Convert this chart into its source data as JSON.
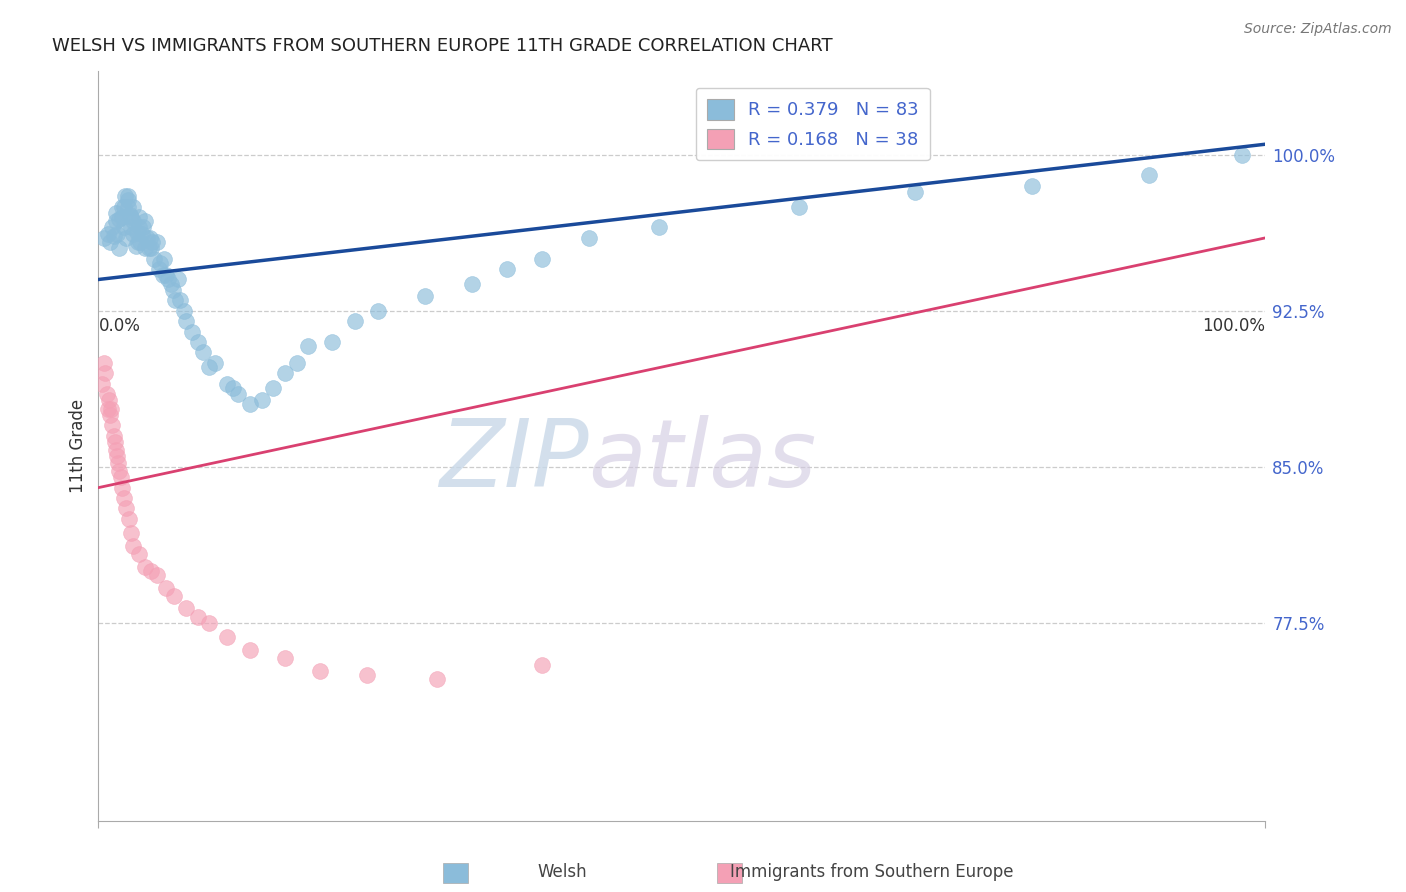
{
  "title": "WELSH VS IMMIGRANTS FROM SOUTHERN EUROPE 11TH GRADE CORRELATION CHART",
  "source": "Source: ZipAtlas.com",
  "ylabel": "11th Grade",
  "R_welsh": 0.379,
  "N_welsh": 83,
  "R_immig": 0.168,
  "N_immig": 38,
  "yticks": [
    0.775,
    0.85,
    0.925,
    1.0
  ],
  "ytick_labels": [
    "77.5%",
    "85.0%",
    "92.5%",
    "100.0%"
  ],
  "xlim": [
    0.0,
    1.0
  ],
  "ylim": [
    0.68,
    1.04
  ],
  "color_welsh": "#8BBCDA",
  "color_immig": "#F4A0B5",
  "color_line_welsh": "#1A4A9A",
  "color_line_immig": "#D94070",
  "color_ticks": "#4466CC",
  "background": "#FFFFFF",
  "welsh_size": 130,
  "immig_size": 130,
  "title_fontsize": 13,
  "label_fontsize": 12,
  "tick_fontsize": 12,
  "watermark_zip": "ZIP",
  "watermark_atlas": "atlas",
  "welsh_x": [
    0.005,
    0.008,
    0.01,
    0.012,
    0.013,
    0.015,
    0.015,
    0.016,
    0.018,
    0.018,
    0.02,
    0.02,
    0.022,
    0.022,
    0.023,
    0.024,
    0.025,
    0.025,
    0.025,
    0.027,
    0.028,
    0.028,
    0.03,
    0.03,
    0.03,
    0.032,
    0.033,
    0.034,
    0.035,
    0.035,
    0.036,
    0.037,
    0.038,
    0.04,
    0.04,
    0.042,
    0.043,
    0.044,
    0.045,
    0.046,
    0.048,
    0.05,
    0.052,
    0.053,
    0.055,
    0.056,
    0.058,
    0.06,
    0.062,
    0.064,
    0.066,
    0.068,
    0.07,
    0.073,
    0.075,
    0.08,
    0.085,
    0.09,
    0.095,
    0.1,
    0.11,
    0.115,
    0.12,
    0.13,
    0.14,
    0.15,
    0.16,
    0.17,
    0.18,
    0.2,
    0.22,
    0.24,
    0.28,
    0.32,
    0.35,
    0.38,
    0.42,
    0.48,
    0.6,
    0.7,
    0.8,
    0.9,
    0.98
  ],
  "welsh_y": [
    0.96,
    0.962,
    0.958,
    0.965,
    0.961,
    0.968,
    0.972,
    0.962,
    0.955,
    0.969,
    0.97,
    0.975,
    0.965,
    0.975,
    0.98,
    0.96,
    0.975,
    0.978,
    0.98,
    0.971,
    0.965,
    0.97,
    0.962,
    0.968,
    0.975,
    0.956,
    0.963,
    0.958,
    0.965,
    0.97,
    0.958,
    0.962,
    0.965,
    0.955,
    0.968,
    0.96,
    0.955,
    0.96,
    0.955,
    0.958,
    0.95,
    0.958,
    0.945,
    0.948,
    0.942,
    0.95,
    0.942,
    0.94,
    0.938,
    0.935,
    0.93,
    0.94,
    0.93,
    0.925,
    0.92,
    0.915,
    0.91,
    0.905,
    0.898,
    0.9,
    0.89,
    0.888,
    0.885,
    0.88,
    0.882,
    0.888,
    0.895,
    0.9,
    0.908,
    0.91,
    0.92,
    0.925,
    0.932,
    0.938,
    0.945,
    0.95,
    0.96,
    0.965,
    0.975,
    0.982,
    0.985,
    0.99,
    1.0
  ],
  "immig_x": [
    0.003,
    0.005,
    0.006,
    0.007,
    0.008,
    0.009,
    0.01,
    0.011,
    0.012,
    0.013,
    0.014,
    0.015,
    0.016,
    0.017,
    0.018,
    0.019,
    0.02,
    0.022,
    0.024,
    0.026,
    0.028,
    0.03,
    0.035,
    0.04,
    0.045,
    0.05,
    0.058,
    0.065,
    0.075,
    0.085,
    0.095,
    0.11,
    0.13,
    0.16,
    0.19,
    0.23,
    0.29,
    0.38
  ],
  "immig_y": [
    0.89,
    0.9,
    0.895,
    0.885,
    0.878,
    0.882,
    0.875,
    0.878,
    0.87,
    0.865,
    0.862,
    0.858,
    0.855,
    0.852,
    0.848,
    0.845,
    0.84,
    0.835,
    0.83,
    0.825,
    0.818,
    0.812,
    0.808,
    0.802,
    0.8,
    0.798,
    0.792,
    0.788,
    0.782,
    0.778,
    0.775,
    0.768,
    0.762,
    0.758,
    0.752,
    0.75,
    0.748,
    0.755
  ],
  "immig_line_x0": 0.0,
  "immig_line_y0": 0.84,
  "immig_line_x1": 1.0,
  "immig_line_y1": 0.96,
  "welsh_line_x0": 0.0,
  "welsh_line_y0": 0.94,
  "welsh_line_x1": 1.0,
  "welsh_line_y1": 1.005
}
